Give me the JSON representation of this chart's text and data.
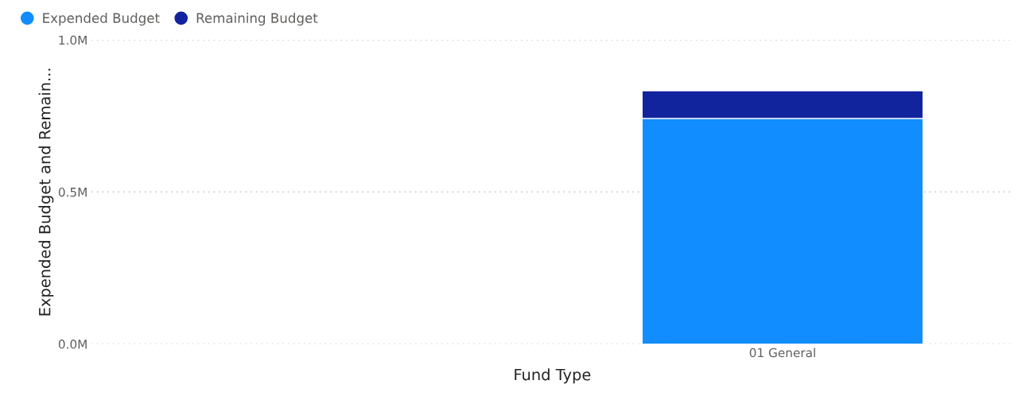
{
  "chart_data": {
    "type": "bar",
    "stacked": true,
    "xlabel": "Fund Type",
    "ylabel": "Expended Budget and Remain...",
    "categories": [
      null,
      "01 General"
    ],
    "series": [
      {
        "name": "Expended Budget",
        "color": "#118dff",
        "values": [
          null,
          742000
        ]
      },
      {
        "name": "Remaining Budget",
        "color": "#12239e",
        "values": [
          null,
          91000
        ]
      }
    ],
    "ylim": [
      0,
      1000000
    ],
    "yticks": [
      {
        "value": 0,
        "label": "0.0M"
      },
      {
        "value": 500000,
        "label": "0.5M"
      },
      {
        "value": 1000000,
        "label": "1.0M"
      }
    ],
    "grid": "y",
    "legend": "top left",
    "marker": "circle"
  }
}
